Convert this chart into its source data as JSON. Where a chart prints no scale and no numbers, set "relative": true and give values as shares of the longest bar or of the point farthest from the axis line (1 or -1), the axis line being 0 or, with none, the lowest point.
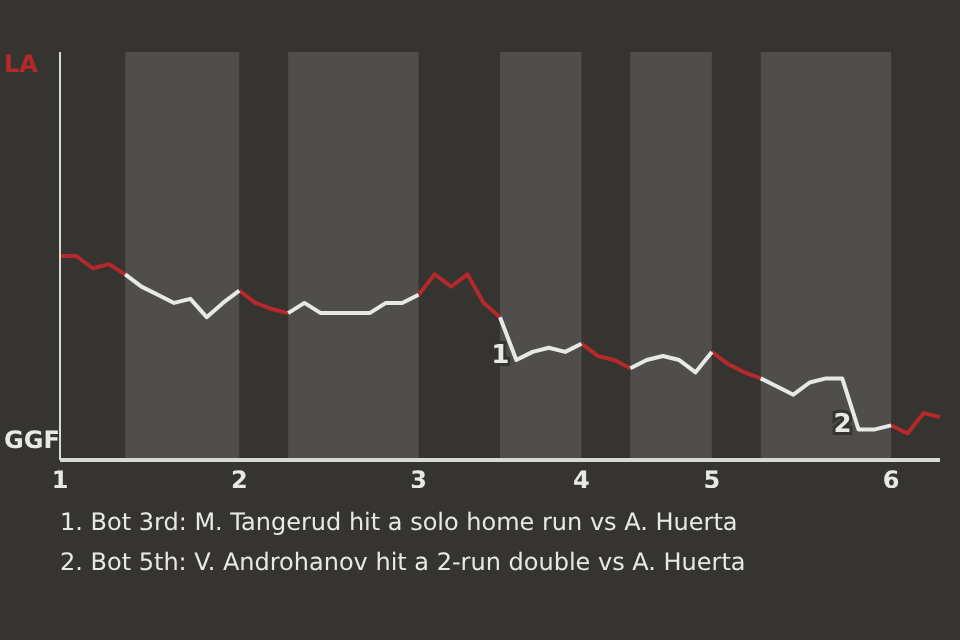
{
  "chart_data": {
    "type": "line",
    "relative": true,
    "categories": [
      "1",
      null,
      null,
      null,
      null,
      null,
      null,
      null,
      null,
      null,
      null,
      "2",
      null,
      null,
      null,
      null,
      null,
      null,
      null,
      null,
      null,
      null,
      "3",
      null,
      null,
      null,
      null,
      null,
      null,
      null,
      null,
      null,
      "4",
      null,
      null,
      null,
      null,
      null,
      null,
      null,
      "5",
      null,
      null,
      null,
      null,
      null,
      null,
      null,
      null,
      null,
      null,
      "6",
      null,
      null,
      null
    ],
    "marker": "none",
    "line_style": "solid",
    "series": [
      {
        "color": "#b5282b",
        "values": [
          1,
          1,
          0.94,
          0.96,
          0.91,
          null,
          null,
          null,
          null,
          null,
          null,
          0.83,
          0.77,
          0.74,
          0.72,
          null,
          null,
          null,
          null,
          null,
          null,
          null,
          0.81,
          0.91,
          0.85,
          0.91,
          0.77,
          0.7,
          null,
          null,
          null,
          null,
          0.57,
          0.51,
          0.49,
          0.45,
          null,
          null,
          null,
          null,
          0.53,
          0.47,
          0.43,
          0.4,
          null,
          null,
          null,
          null,
          null,
          null,
          null,
          0.17,
          0.13,
          0.23,
          0.21
        ]
      },
      {
        "color": "#e8e8e6",
        "values": [
          null,
          null,
          null,
          null,
          0.91,
          0.85,
          0.81,
          0.77,
          0.79,
          0.7,
          0.77,
          0.83,
          null,
          null,
          0.72,
          0.77,
          0.72,
          0.72,
          0.72,
          0.72,
          0.77,
          0.77,
          0.81,
          null,
          null,
          null,
          null,
          0.7,
          0.49,
          0.53,
          0.55,
          0.53,
          0.57,
          null,
          null,
          0.45,
          0.49,
          0.51,
          0.49,
          0.43,
          0.53,
          null,
          null,
          0.4,
          0.36,
          0.32,
          0.38,
          0.4,
          0.4,
          0.15,
          0.15,
          0.17,
          null,
          null,
          null
        ]
      }
    ],
    "annotations": [
      "LA",
      "GGF",
      "1",
      "2",
      "1. Bot 3rd: M. Tangerud hit a solo home run vs A. Huerta",
      "2. Bot 5th: V. Androhanov hit a 2-run double vs A. Huerta"
    ]
  }
}
